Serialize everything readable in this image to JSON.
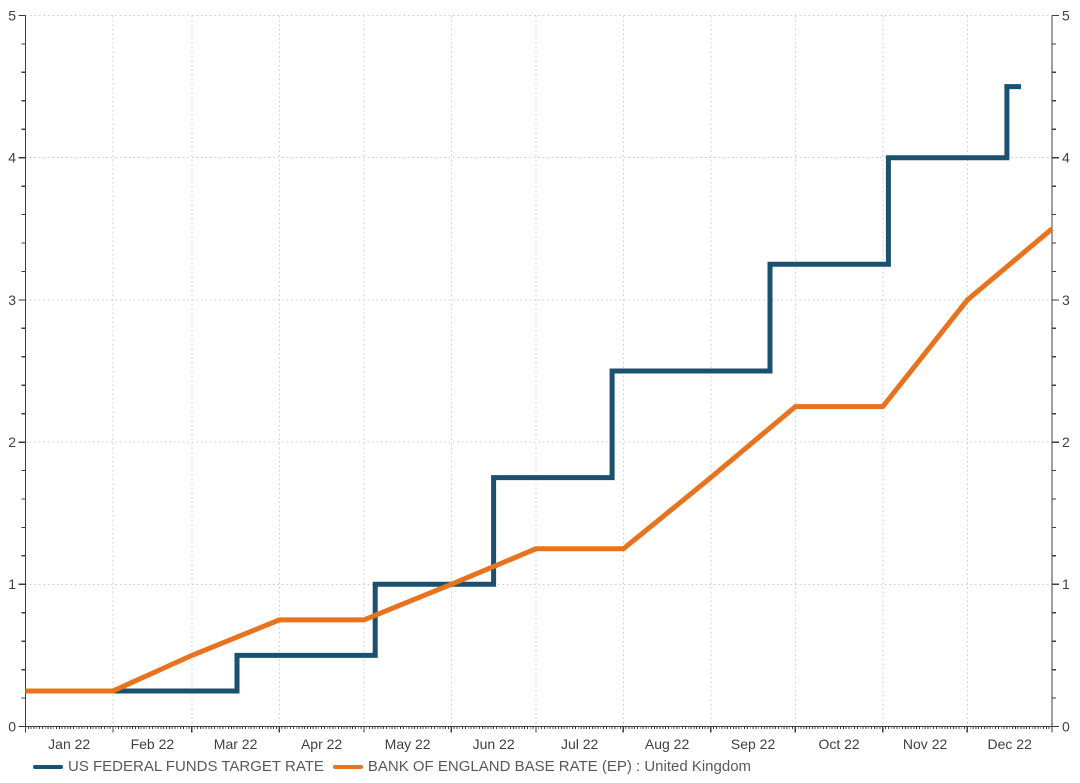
{
  "page": {
    "background": "#FFFFFF"
  },
  "chart_data": {
    "type": "line",
    "title": "",
    "grid": "dotted",
    "legend_position": "bottom-left",
    "x_axis": {
      "label": "",
      "period": "Jan 2022 - Dec 2022",
      "tick_labels": [
        "Jan 22",
        "Feb 22",
        "Mar 22",
        "Apr 22",
        "May 22",
        "Jun 22",
        "Jul 22",
        "Aug 22",
        "Sep 22",
        "Oct 22",
        "Nov 22",
        "Dec 22"
      ],
      "month_boundaries_day": [
        0,
        31,
        59,
        90,
        120,
        151,
        181,
        212,
        243,
        273,
        304,
        334,
        364
      ],
      "minor_ticks": "daily"
    },
    "y_axis": {
      "label": "",
      "min": 0,
      "max": 5,
      "major_tick_step": 1,
      "minor_tick_step": 0.2,
      "tick_labels": [
        "0",
        "1",
        "2",
        "3",
        "4",
        "5"
      ],
      "sides": "both"
    },
    "style": {
      "grid_color": "#C8C8C8",
      "axis_color": "#3F3F3F",
      "legend_text_color": "#58595B",
      "background": "#FFFFFF",
      "line_width": 5
    },
    "series": [
      {
        "name": "US FEDERAL FUNDS TARGET RATE",
        "color": "#1A5070",
        "line_style": "step-after",
        "points": [
          {
            "date": "2022-01-01",
            "day": 0,
            "value": 0.25
          },
          {
            "date": "2022-03-17",
            "day": 75,
            "value": 0.5
          },
          {
            "date": "2022-05-05",
            "day": 124,
            "value": 1.0
          },
          {
            "date": "2022-06-16",
            "day": 166,
            "value": 1.75
          },
          {
            "date": "2022-07-28",
            "day": 208,
            "value": 2.5
          },
          {
            "date": "2022-09-22",
            "day": 264,
            "value": 3.25
          },
          {
            "date": "2022-11-03",
            "day": 306,
            "value": 4.0
          },
          {
            "date": "2022-12-15",
            "day": 348,
            "value": 4.5
          }
        ],
        "end_day": 353
      },
      {
        "name": "BANK OF ENGLAND BASE RATE (EP) : United Kingdom",
        "color": "#E8731E",
        "line_style": "linear",
        "points": [
          {
            "date": "2022-01-01",
            "day": 0,
            "value": 0.25
          },
          {
            "date": "2022-02-01",
            "day": 31,
            "value": 0.25
          },
          {
            "date": "2022-03-01",
            "day": 59,
            "value": 0.5
          },
          {
            "date": "2022-04-01",
            "day": 90,
            "value": 0.75
          },
          {
            "date": "2022-05-01",
            "day": 120,
            "value": 0.75
          },
          {
            "date": "2022-06-01",
            "day": 151,
            "value": 1.0
          },
          {
            "date": "2022-07-01",
            "day": 181,
            "value": 1.25
          },
          {
            "date": "2022-08-01",
            "day": 212,
            "value": 1.25
          },
          {
            "date": "2022-09-01",
            "day": 243,
            "value": 1.75
          },
          {
            "date": "2022-10-01",
            "day": 273,
            "value": 2.25
          },
          {
            "date": "2022-11-01",
            "day": 304,
            "value": 2.25
          },
          {
            "date": "2022-12-01",
            "day": 334,
            "value": 3.0
          },
          {
            "date": "2022-12-31",
            "day": 364,
            "value": 3.5
          }
        ]
      }
    ]
  }
}
